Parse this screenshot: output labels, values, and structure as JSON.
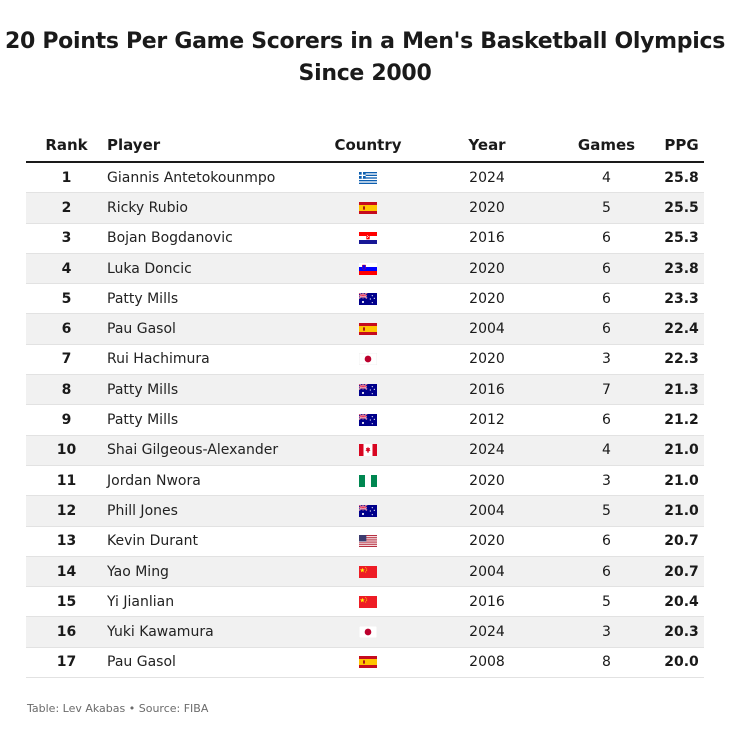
{
  "chart_data": {
    "type": "table",
    "title_lines": [
      "20 Points Per Game Scorers in a Men's Basketball Olympics",
      "Since 2000"
    ],
    "columns": [
      "Rank",
      "Player",
      "Country",
      "Year",
      "Games",
      "PPG"
    ],
    "rows": [
      {
        "rank": "1",
        "player": "Giannis Antetokounmpo",
        "country": "greece",
        "year": "2024",
        "games": "4",
        "ppg": "25.8"
      },
      {
        "rank": "2",
        "player": "Ricky Rubio",
        "country": "spain",
        "year": "2020",
        "games": "5",
        "ppg": "25.5"
      },
      {
        "rank": "3",
        "player": "Bojan Bogdanovic",
        "country": "croatia",
        "year": "2016",
        "games": "6",
        "ppg": "25.3"
      },
      {
        "rank": "4",
        "player": "Luka Doncic",
        "country": "slovenia",
        "year": "2020",
        "games": "6",
        "ppg": "23.8"
      },
      {
        "rank": "5",
        "player": "Patty Mills",
        "country": "australia",
        "year": "2020",
        "games": "6",
        "ppg": "23.3"
      },
      {
        "rank": "6",
        "player": "Pau Gasol",
        "country": "spain",
        "year": "2004",
        "games": "6",
        "ppg": "22.4"
      },
      {
        "rank": "7",
        "player": "Rui Hachimura",
        "country": "japan",
        "year": "2020",
        "games": "3",
        "ppg": "22.3"
      },
      {
        "rank": "8",
        "player": "Patty Mills",
        "country": "australia",
        "year": "2016",
        "games": "7",
        "ppg": "21.3"
      },
      {
        "rank": "9",
        "player": "Patty Mills",
        "country": "australia",
        "year": "2012",
        "games": "6",
        "ppg": "21.2"
      },
      {
        "rank": "10",
        "player": "Shai Gilgeous-Alexander",
        "country": "canada",
        "year": "2024",
        "games": "4",
        "ppg": "21.0"
      },
      {
        "rank": "11",
        "player": "Jordan Nwora",
        "country": "nigeria",
        "year": "2020",
        "games": "3",
        "ppg": "21.0"
      },
      {
        "rank": "12",
        "player": "Phill Jones",
        "country": "australia",
        "year": "2004",
        "games": "5",
        "ppg": "21.0"
      },
      {
        "rank": "13",
        "player": "Kevin Durant",
        "country": "usa",
        "year": "2020",
        "games": "6",
        "ppg": "20.7"
      },
      {
        "rank": "14",
        "player": "Yao Ming",
        "country": "china",
        "year": "2004",
        "games": "6",
        "ppg": "20.7"
      },
      {
        "rank": "15",
        "player": "Yi Jianlian",
        "country": "china",
        "year": "2016",
        "games": "5",
        "ppg": "20.4"
      },
      {
        "rank": "16",
        "player": "Yuki Kawamura",
        "country": "japan",
        "year": "2024",
        "games": "3",
        "ppg": "20.3"
      },
      {
        "rank": "17",
        "player": "Pau Gasol",
        "country": "spain",
        "year": "2008",
        "games": "8",
        "ppg": "20.0"
      }
    ],
    "source": "Table: Lev Akabas • Source: FIBA"
  }
}
